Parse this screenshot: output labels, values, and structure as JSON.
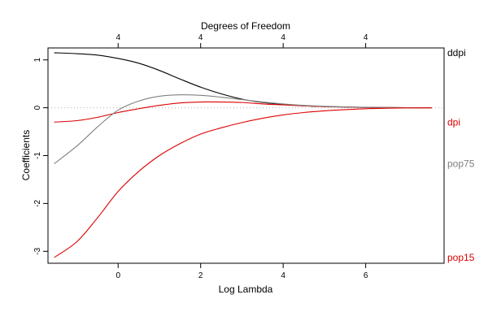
{
  "chart_data": {
    "type": "line",
    "title": "",
    "xlabel": "Log Lambda",
    "ylabel": "Coefficients",
    "top_axis_label": "Degrees of Freedom",
    "xlim": [
      -1.7,
      7.9
    ],
    "ylim": [
      -3.25,
      1.25
    ],
    "x_ticks": [
      0,
      2,
      4,
      6
    ],
    "x_tick_labels": [
      "0",
      "2",
      "4",
      "6"
    ],
    "y_ticks": [
      1,
      0,
      -1,
      -2,
      -3
    ],
    "y_tick_labels": [
      "1",
      "0",
      "-1",
      "-2",
      "-3"
    ],
    "top_ticks": [
      0,
      2,
      4,
      6
    ],
    "top_tick_labels": [
      "4",
      "4",
      "4",
      "4"
    ],
    "zero_reference_line": true,
    "grid": false,
    "legend": "right-edge labels",
    "series": [
      {
        "name": "ddpi",
        "color": "#000000",
        "x": [
          -1.55,
          -1.0,
          -0.5,
          0.0,
          0.5,
          1.0,
          1.5,
          2.0,
          2.5,
          3.0,
          3.5,
          4.0,
          4.5,
          5.0,
          5.5,
          6.0,
          6.5,
          7.0,
          7.6
        ],
        "y": [
          1.15,
          1.13,
          1.1,
          1.03,
          0.93,
          0.78,
          0.6,
          0.43,
          0.29,
          0.18,
          0.11,
          0.07,
          0.04,
          0.025,
          0.015,
          0.008,
          0.004,
          0.002,
          0.001
        ]
      },
      {
        "name": "dpi",
        "color": "#dd0000",
        "x": [
          -1.55,
          -1.0,
          -0.5,
          0.0,
          0.5,
          1.0,
          1.5,
          2.0,
          2.5,
          3.0,
          3.5,
          4.0,
          4.5,
          5.0,
          5.5,
          6.0,
          6.5,
          7.0,
          7.6
        ],
        "y": [
          -0.3,
          -0.27,
          -0.2,
          -0.1,
          -0.02,
          0.05,
          0.1,
          0.12,
          0.12,
          0.11,
          0.08,
          0.06,
          0.04,
          0.025,
          0.015,
          0.008,
          0.004,
          0.002,
          0.001
        ]
      },
      {
        "name": "pop75",
        "color": "#808080",
        "x": [
          -1.55,
          -1.0,
          -0.5,
          0.0,
          0.5,
          1.0,
          1.5,
          2.0,
          2.5,
          3.0,
          3.5,
          4.0,
          4.5,
          5.0,
          5.5,
          6.0,
          6.5,
          7.0,
          7.6
        ],
        "y": [
          -1.17,
          -0.8,
          -0.4,
          -0.05,
          0.14,
          0.24,
          0.27,
          0.26,
          0.22,
          0.17,
          0.12,
          0.08,
          0.05,
          0.03,
          0.018,
          0.01,
          0.005,
          0.002,
          0.001
        ]
      },
      {
        "name": "pop15",
        "color": "#dd0000",
        "x": [
          -1.55,
          -1.0,
          -0.5,
          0.0,
          0.5,
          1.0,
          1.5,
          2.0,
          2.5,
          3.0,
          3.5,
          4.0,
          4.5,
          5.0,
          5.5,
          6.0,
          6.5,
          7.0,
          7.6
        ],
        "y": [
          -3.13,
          -2.8,
          -2.3,
          -1.75,
          -1.33,
          -1.0,
          -0.75,
          -0.55,
          -0.42,
          -0.31,
          -0.22,
          -0.15,
          -0.1,
          -0.065,
          -0.04,
          -0.02,
          -0.01,
          -0.004,
          -0.002
        ]
      }
    ]
  }
}
